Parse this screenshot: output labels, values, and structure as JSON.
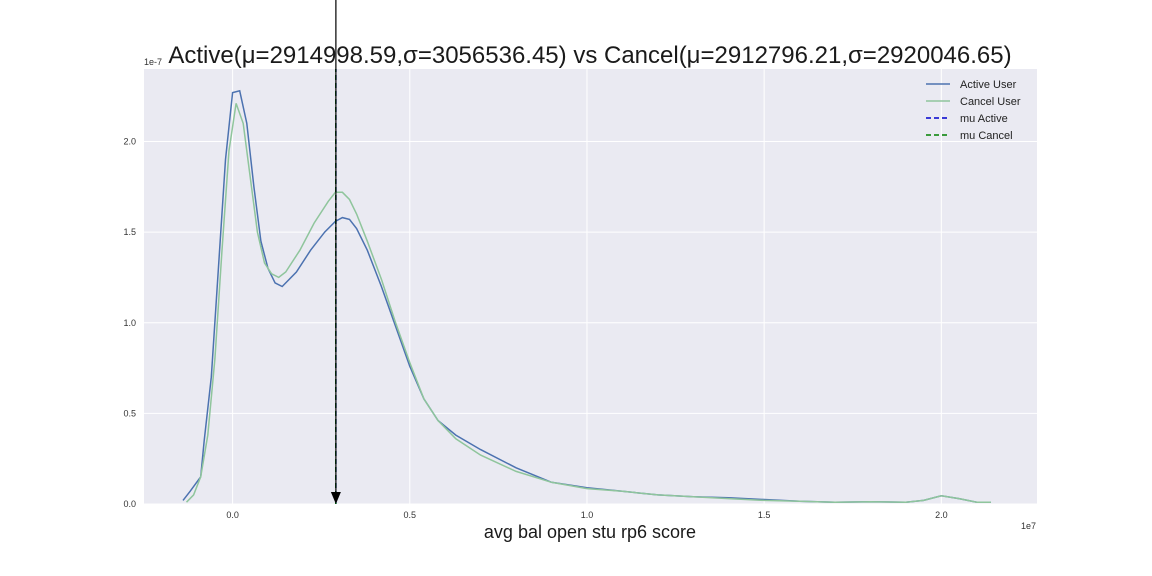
{
  "chart_data": {
    "type": "line",
    "title": "Active(μ=2914998.59,σ=3056536.45) vs Cancel(μ=2912796.21,σ=2920046.65)",
    "xlabel": "avg bal open stu rp6 score",
    "ylabel": "",
    "x_offset_label": "1e7",
    "y_offset_label": "1e-7",
    "xlim": [
      -0.25,
      2.27
    ],
    "ylim": [
      0,
      2.4
    ],
    "x_ticks": [
      0.0,
      0.5,
      1.0,
      1.5,
      2.0
    ],
    "x_tick_labels": [
      "0.0",
      "0.5",
      "1.0",
      "1.5",
      "2.0"
    ],
    "y_ticks": [
      0.0,
      0.5,
      1.0,
      1.5,
      2.0
    ],
    "y_tick_labels": [
      "0.0",
      "0.5",
      "1.0",
      "1.5",
      "2.0"
    ],
    "grid": true,
    "legend_position": "top-right",
    "series": [
      {
        "name": "Active User",
        "color": "#4c72b0",
        "style": "solid",
        "x": [
          -0.14,
          -0.12,
          -0.09,
          -0.08,
          -0.06,
          -0.04,
          -0.02,
          0.0,
          0.02,
          0.04,
          0.06,
          0.08,
          0.1,
          0.12,
          0.14,
          0.18,
          0.22,
          0.26,
          0.29,
          0.31,
          0.33,
          0.35,
          0.38,
          0.42,
          0.46,
          0.5,
          0.54,
          0.58,
          0.63,
          0.7,
          0.8,
          0.9,
          1.0,
          1.1,
          1.2,
          1.3,
          1.4,
          1.5,
          1.6,
          1.7,
          1.8,
          1.9,
          1.95,
          2.0,
          2.05,
          2.1,
          2.14
        ],
        "y": [
          0.02,
          0.07,
          0.15,
          0.35,
          0.7,
          1.3,
          1.9,
          2.27,
          2.28,
          2.1,
          1.75,
          1.45,
          1.3,
          1.22,
          1.2,
          1.28,
          1.4,
          1.5,
          1.56,
          1.58,
          1.57,
          1.52,
          1.4,
          1.2,
          0.98,
          0.76,
          0.58,
          0.46,
          0.38,
          0.3,
          0.2,
          0.12,
          0.09,
          0.07,
          0.05,
          0.04,
          0.035,
          0.025,
          0.015,
          0.01,
          0.012,
          0.01,
          0.02,
          0.045,
          0.03,
          0.01,
          0.01
        ]
      },
      {
        "name": "Cancel User",
        "color": "#8fc59c",
        "style": "solid",
        "x": [
          -0.13,
          -0.11,
          -0.09,
          -0.07,
          -0.05,
          -0.03,
          -0.01,
          0.01,
          0.03,
          0.05,
          0.07,
          0.09,
          0.11,
          0.13,
          0.15,
          0.19,
          0.23,
          0.27,
          0.29,
          0.31,
          0.33,
          0.35,
          0.38,
          0.42,
          0.46,
          0.5,
          0.54,
          0.58,
          0.63,
          0.7,
          0.8,
          0.9,
          1.0,
          1.1,
          1.2,
          1.3,
          1.4,
          1.5,
          1.6,
          1.7,
          1.8,
          1.9,
          1.95,
          2.0,
          2.05,
          2.1,
          2.14
        ],
        "y": [
          0.01,
          0.05,
          0.15,
          0.38,
          0.8,
          1.4,
          1.95,
          2.21,
          2.1,
          1.8,
          1.5,
          1.33,
          1.27,
          1.25,
          1.28,
          1.4,
          1.55,
          1.67,
          1.72,
          1.72,
          1.68,
          1.6,
          1.45,
          1.24,
          1.0,
          0.78,
          0.58,
          0.46,
          0.36,
          0.27,
          0.18,
          0.12,
          0.085,
          0.07,
          0.05,
          0.04,
          0.03,
          0.02,
          0.015,
          0.01,
          0.012,
          0.01,
          0.02,
          0.045,
          0.03,
          0.01,
          0.01
        ]
      },
      {
        "name": "mu Active",
        "color": "#0000cc",
        "style": "dashed",
        "x": [
          0.2915,
          0.2915
        ],
        "y": [
          0,
          2.4
        ]
      },
      {
        "name": "mu Cancel",
        "color": "#008000",
        "style": "dashed",
        "x": [
          0.2913,
          0.2913
        ],
        "y": [
          0,
          2.4
        ]
      }
    ],
    "annotations": [
      {
        "type": "arrow",
        "x": 0.2915,
        "color": "#000000"
      }
    ]
  }
}
